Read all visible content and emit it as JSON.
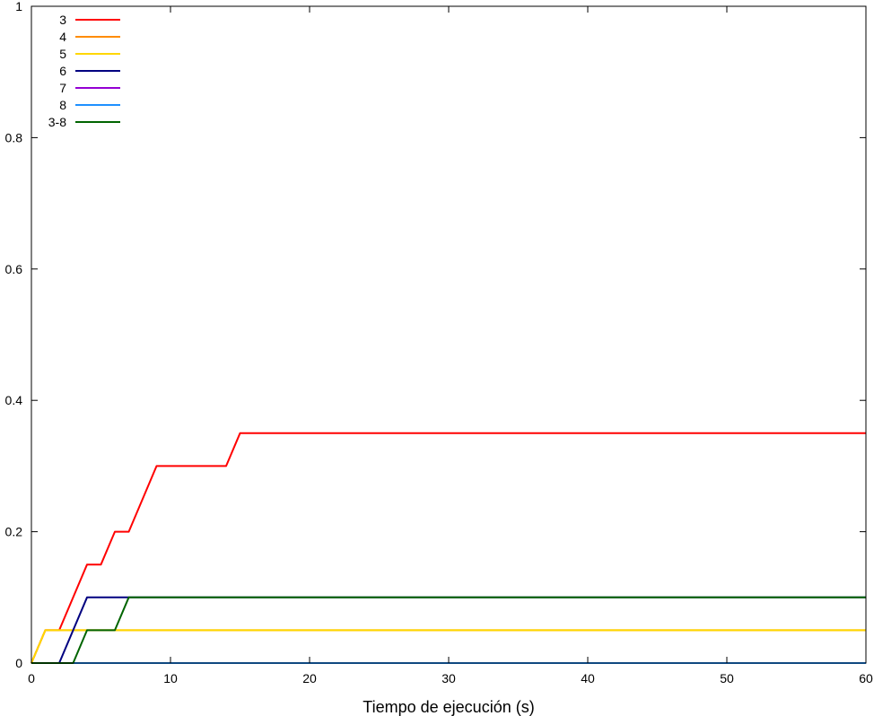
{
  "chart_data": {
    "type": "line",
    "title": "",
    "xlabel": "Tiempo de ejecución (s)",
    "ylabel": "",
    "xlim": [
      0,
      60
    ],
    "ylim": [
      0,
      1
    ],
    "xticks": [
      0,
      10,
      20,
      30,
      40,
      50,
      60
    ],
    "xtick_labels": [
      "0",
      "10",
      "20",
      "30",
      "40",
      "50",
      "60"
    ],
    "yticks": [
      0,
      0.2,
      0.4,
      0.6,
      0.8,
      1
    ],
    "ytick_labels": [
      "0",
      "0.2",
      "0.4",
      "0.6",
      "0.8",
      "1"
    ],
    "grid": false,
    "legend_position": "top-left",
    "series": [
      {
        "name": "3",
        "color": "#ff0000",
        "x": [
          0,
          1,
          2,
          4,
          5,
          6,
          7,
          9,
          14,
          15,
          60
        ],
        "y": [
          0,
          0.05,
          0.05,
          0.15,
          0.15,
          0.2,
          0.2,
          0.3,
          0.3,
          0.35,
          0.35
        ]
      },
      {
        "name": "4",
        "color": "#ff8c00",
        "x": [
          0,
          1,
          4,
          5,
          60
        ],
        "y": [
          0,
          0.05,
          0.05,
          0.05,
          0.05
        ]
      },
      {
        "name": "5",
        "color": "#ffd700",
        "x": [
          0,
          1,
          60
        ],
        "y": [
          0,
          0.05,
          0.05
        ]
      },
      {
        "name": "6",
        "color": "#000080",
        "x": [
          0,
          2,
          4,
          60
        ],
        "y": [
          0,
          0,
          0.1,
          0.1
        ]
      },
      {
        "name": "7",
        "color": "#9400d3",
        "x": [
          0,
          60
        ],
        "y": [
          0,
          0
        ]
      },
      {
        "name": "8",
        "color": "#1e90ff",
        "x": [
          0,
          60
        ],
        "y": [
          0,
          0
        ]
      },
      {
        "name": "3-8",
        "color": "#006400",
        "x": [
          0,
          3,
          4,
          6,
          7,
          60
        ],
        "y": [
          0,
          0,
          0.05,
          0.05,
          0.1,
          0.1
        ]
      }
    ]
  }
}
